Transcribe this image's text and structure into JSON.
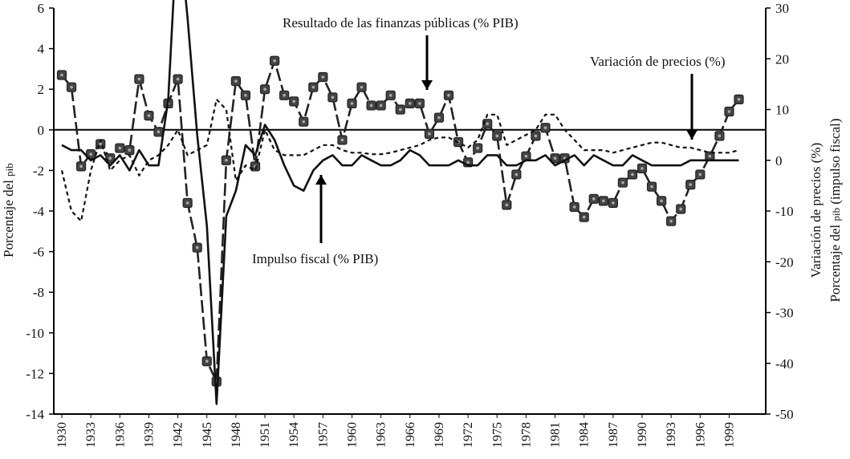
{
  "chart_data": {
    "type": "line",
    "y_left": {
      "label_main": "Porcentaje del ",
      "label_sc": "pib",
      "ylim": [
        -14,
        6
      ],
      "ticks": [
        6,
        4,
        2,
        0,
        -2,
        -4,
        -6,
        -8,
        -10,
        -12,
        -14
      ]
    },
    "y_right": {
      "label_line1": "Variación de precios (%)",
      "label_line2_main": "Porcentaje del ",
      "label_line2_sc": "pib",
      "label_line2_end": " (impulso fiscal)",
      "ylim": [
        -50,
        30
      ],
      "ticks": [
        30,
        20,
        10,
        0,
        -10,
        -20,
        -30,
        -40,
        -50
      ]
    },
    "x": {
      "range": [
        1930,
        2000
      ],
      "tick_labels": [
        "1930",
        "1933",
        "1936",
        "1939",
        "1942",
        "1945",
        "1948",
        "1951",
        "1954",
        "1957",
        "1960",
        "1963",
        "1966",
        "1969",
        "1972",
        "1975",
        "1978",
        "1981",
        "1984",
        "1987",
        "1990",
        "1993",
        "1996",
        "1999"
      ]
    },
    "annotations": [
      {
        "name": "resultado",
        "text": "Resultado de las finanzas públicas (% PIB)"
      },
      {
        "name": "precios",
        "text": "Variación de precios (%)"
      },
      {
        "name": "impulso",
        "text": "Impulso fiscal (% PIB)"
      }
    ],
    "series": [
      {
        "name": "Resultado de las finanzas públicas (% PIB)",
        "axis": "left",
        "style": "dash-square-markers",
        "color": "#222222",
        "x": [
          1930,
          1931,
          1932,
          1933,
          1934,
          1935,
          1936,
          1937,
          1938,
          1939,
          1940,
          1941,
          1942,
          1943,
          1944,
          1945,
          1946,
          1947,
          1948,
          1949,
          1950,
          1951,
          1952,
          1953,
          1954,
          1955,
          1956,
          1957,
          1958,
          1959,
          1960,
          1961,
          1962,
          1963,
          1964,
          1965,
          1966,
          1967,
          1968,
          1969,
          1970,
          1971,
          1972,
          1973,
          1974,
          1975,
          1976,
          1977,
          1978,
          1979,
          1980,
          1981,
          1982,
          1983,
          1984,
          1985,
          1986,
          1987,
          1988,
          1989,
          1990,
          1991,
          1992,
          1993,
          1994,
          1995,
          1996,
          1997,
          1998,
          1999,
          2000
        ],
        "y": [
          2.7,
          2.1,
          -1.8,
          -1.2,
          -0.7,
          -1.4,
          -0.9,
          -1.0,
          2.5,
          0.7,
          -0.1,
          1.3,
          2.5,
          -3.6,
          -5.8,
          -11.4,
          -12.4,
          -1.5,
          2.4,
          1.7,
          -1.8,
          2.0,
          3.4,
          1.7,
          1.4,
          0.4,
          2.1,
          2.6,
          1.6,
          -0.5,
          1.3,
          2.1,
          1.2,
          1.2,
          1.7,
          1.0,
          1.3,
          1.3,
          -0.2,
          0.6,
          1.7,
          -0.6,
          -1.6,
          -0.9,
          0.3,
          -0.3,
          -3.7,
          -2.2,
          -1.3,
          -0.3,
          0.1,
          -1.4,
          -1.4,
          -3.8,
          -4.3,
          -3.4,
          -3.5,
          -3.6,
          -2.6,
          -2.2,
          -1.9,
          -2.8,
          -3.5,
          -4.5,
          -3.9,
          -2.7,
          -2.2,
          -1.3,
          -0.3,
          0.9,
          1.5
        ]
      },
      {
        "name": "Variación de precios (%)",
        "axis": "right",
        "style": "short-dash",
        "color": "#111111",
        "x": [
          1930,
          1931,
          1932,
          1933,
          1934,
          1935,
          1936,
          1937,
          1938,
          1939,
          1940,
          1941,
          1942,
          1943,
          1944,
          1945,
          1946,
          1947,
          1948,
          1949,
          1950,
          1951,
          1952,
          1953,
          1954,
          1955,
          1956,
          1957,
          1958,
          1959,
          1960,
          1961,
          1962,
          1963,
          1964,
          1965,
          1966,
          1967,
          1968,
          1969,
          1970,
          1971,
          1972,
          1973,
          1974,
          1975,
          1976,
          1977,
          1978,
          1979,
          1980,
          1981,
          1982,
          1983,
          1984,
          1985,
          1986,
          1987,
          1988,
          1989,
          1990,
          1991,
          1992,
          1993,
          1994,
          1995,
          1996,
          1997,
          1998,
          1999,
          2000
        ],
        "y": [
          -2,
          -10,
          -12,
          -2,
          4,
          -2,
          0,
          1,
          -3,
          0,
          1,
          3,
          6,
          1,
          2,
          3,
          12,
          10,
          -4,
          -1,
          -2,
          6,
          2,
          1,
          1,
          1,
          2,
          3,
          3,
          2,
          1.5,
          1.5,
          1.2,
          1.2,
          1.5,
          2,
          2.5,
          3,
          4,
          4.5,
          4.5,
          3.5,
          2.5,
          4,
          9,
          9,
          3,
          4,
          5,
          6,
          9,
          9,
          6,
          4,
          2,
          2,
          2,
          1.5,
          2,
          2.5,
          3,
          3.5,
          3.5,
          3,
          2.5,
          2.5,
          2,
          1.5,
          1.5,
          1.5,
          2
        ]
      },
      {
        "name": "Impulso fiscal (% PIB)",
        "axis": "right",
        "style": "solid",
        "color": "#111111",
        "x": [
          1930,
          1931,
          1932,
          1933,
          1934,
          1935,
          1936,
          1937,
          1938,
          1939,
          1940,
          1941,
          1942,
          1943,
          1944,
          1945,
          1946,
          1947,
          1948,
          1949,
          1950,
          1951,
          1952,
          1953,
          1954,
          1955,
          1956,
          1957,
          1958,
          1959,
          1960,
          1961,
          1962,
          1963,
          1964,
          1965,
          1966,
          1967,
          1968,
          1969,
          1970,
          1971,
          1972,
          1973,
          1974,
          1975,
          1976,
          1977,
          1978,
          1979,
          1980,
          1981,
          1982,
          1983,
          1984,
          1985,
          1986,
          1987,
          1988,
          1989,
          1990,
          1991,
          1992,
          1993,
          1994,
          1995,
          1996,
          1997,
          1998,
          1999,
          2000
        ],
        "y": [
          3,
          2,
          2,
          0,
          1,
          -1,
          1,
          -2,
          2,
          -1,
          -1,
          12,
          48,
          28,
          5,
          -13,
          -48,
          -11,
          -6,
          3,
          1,
          7,
          4,
          -1,
          -5,
          -6,
          -2,
          0,
          1,
          -1,
          -1,
          1,
          0,
          -1,
          -1,
          0,
          2,
          1,
          -1,
          -1,
          -1,
          0,
          -1,
          -1,
          1,
          1,
          -1,
          -1,
          0,
          0,
          1,
          -1,
          0,
          1,
          -1,
          1,
          0,
          -1,
          -1,
          1,
          0,
          -1,
          -1,
          -1,
          -1,
          0,
          0,
          0,
          0,
          0,
          0
        ]
      }
    ]
  }
}
